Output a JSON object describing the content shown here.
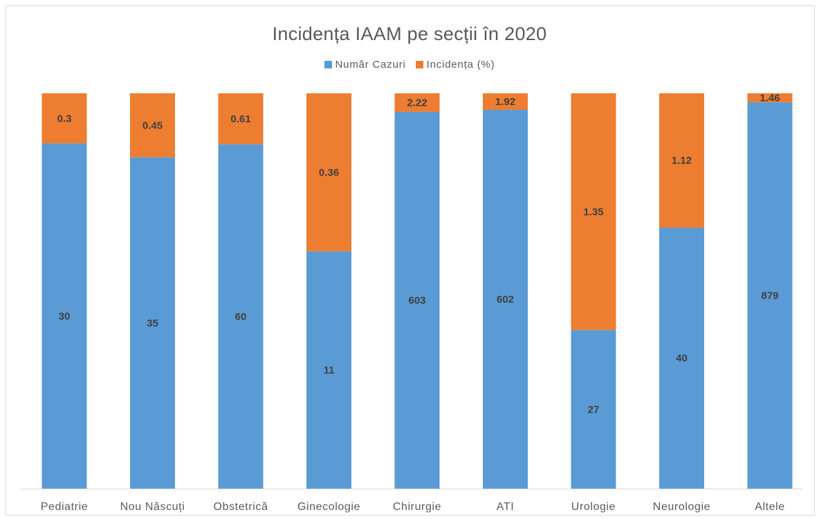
{
  "chart_data": {
    "type": "bar",
    "stacked": true,
    "normalized_100_percent": true,
    "title": "Incidența IAAM pe secții în 2020",
    "xlabel": "",
    "ylabel": "",
    "legend_position": "top",
    "grid": false,
    "categories": [
      "Pediatrie",
      "Nou Născuți",
      "Obstetrică",
      "Ginecologie",
      "Chirurgie",
      "ATI",
      "Urologie",
      "Neurologie",
      "Altele"
    ],
    "series": [
      {
        "name": "Număr Cazuri",
        "color": "#5B9BD5",
        "values": [
          30,
          35,
          60,
          11,
          603,
          602,
          27,
          40,
          879
        ],
        "labels": [
          "30",
          "35",
          "60",
          "11",
          "603",
          "602",
          "27",
          "40",
          "879"
        ]
      },
      {
        "name": "Incidența (%)",
        "color": "#ED7D31",
        "values": [
          0.3,
          0.45,
          0.61,
          0.36,
          2.22,
          1.92,
          1.35,
          1.12,
          1.46
        ],
        "labels": [
          "0.3",
          "0.45",
          "0.61",
          "0.36",
          "2.22",
          "1.92",
          "1.35",
          "1.12",
          "1.46"
        ]
      }
    ]
  }
}
